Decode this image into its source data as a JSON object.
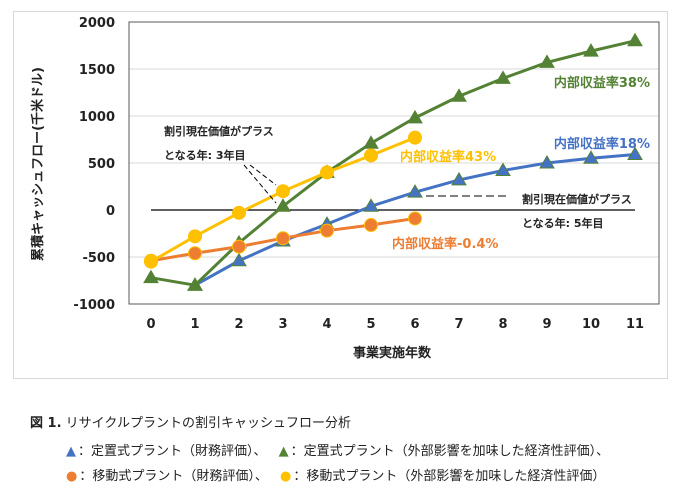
{
  "chart_data": {
    "type": "line",
    "ylabel": "累積キャッシュフロー(千米ドル)",
    "xlabel": "事業実施年数",
    "xlim": [
      0,
      11
    ],
    "ylim": [
      -1000,
      2000
    ],
    "yticks": [
      -1000,
      -500,
      0,
      500,
      1000,
      1500,
      2000
    ],
    "xticks": [
      0,
      1,
      2,
      3,
      4,
      5,
      6,
      7,
      8,
      9,
      10,
      11
    ],
    "grid": "horizontal",
    "series": [
      {
        "key": "fixed_fin",
        "marker": "triangle",
        "color": "#4472C4",
        "x": [
          1,
          2,
          3,
          4,
          5,
          6,
          7,
          8,
          9,
          10,
          11
        ],
        "values": [
          -800,
          -540,
          -330,
          -150,
          40,
          190,
          320,
          420,
          500,
          550,
          590
        ]
      },
      {
        "key": "fixed_ext",
        "marker": "triangle",
        "color": "#548235",
        "x": [
          0,
          1,
          2,
          3,
          4,
          5,
          6,
          7,
          8,
          9,
          10,
          11
        ],
        "values": [
          -720,
          -800,
          -350,
          40,
          400,
          710,
          980,
          1210,
          1400,
          1570,
          1690,
          1800
        ]
      },
      {
        "key": "mobile_fin",
        "marker": "circle",
        "color": "#ED7D31",
        "x": [
          0,
          1,
          2,
          3,
          4,
          5,
          6
        ],
        "values": [
          -540,
          -460,
          -390,
          -300,
          -220,
          -160,
          -90
        ]
      },
      {
        "key": "mobile_ext",
        "marker": "circle",
        "color": "#FFC000",
        "x": [
          0,
          1,
          2,
          3,
          4,
          5,
          6
        ],
        "values": [
          -550,
          -280,
          -30,
          200,
          400,
          580,
          770
        ]
      }
    ],
    "annotations": {
      "irr_fixed_ext": "内部収益率38%",
      "irr_fixed_fin": "内部収益率18%",
      "irr_mobile_ext": "内部収益率43%",
      "irr_mobile_fin": "内部収益率-0.4%",
      "payback3_line1": "割引現在価値がプラス",
      "payback3_line2": "となる年: 3年目",
      "payback5_line1": "割引現在価値がプラス",
      "payback5_line2": "となる年: 5年目"
    }
  },
  "caption": {
    "title_prefix": "図 1.",
    "title": "リサイクルプラントの割引キャッシュフロー分析",
    "legend": [
      {
        "marker": "▲",
        "color": "#4472C4",
        "label": "：定置式プラント（財務評価）、"
      },
      {
        "marker": "▲",
        "color": "#548235",
        "label": "：定置式プラント（外部影響を加味した経済性評価）、"
      },
      {
        "marker": "●",
        "color": "#ED7D31",
        "label": "：移動式プラント（財務評価）、"
      },
      {
        "marker": "●",
        "color": "#FFC000",
        "label": "：移動式プラント（外部影響を加味した経済性評価）"
      }
    ]
  }
}
